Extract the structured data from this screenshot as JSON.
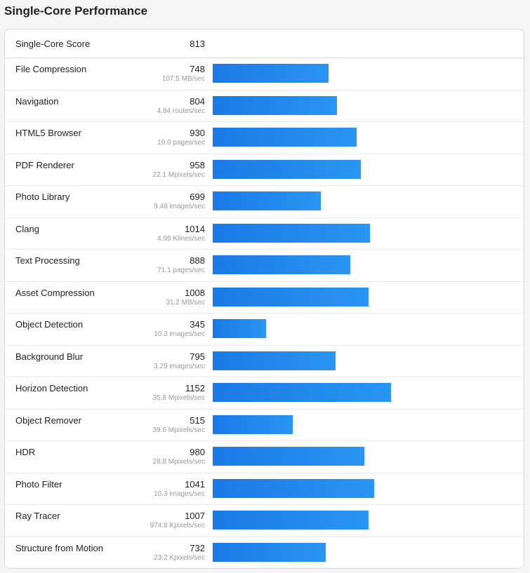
{
  "title": "Single-Core Performance",
  "summary": {
    "label": "Single-Core Score",
    "score": "813"
  },
  "bar_scale_max": 1152,
  "benchmarks": [
    {
      "name": "File Compression",
      "score": "748",
      "rate": "107.5 MB/sec",
      "value": 748
    },
    {
      "name": "Navigation",
      "score": "804",
      "rate": "4.84 routes/sec",
      "value": 804
    },
    {
      "name": "HTML5 Browser",
      "score": "930",
      "rate": "19.0 pages/sec",
      "value": 930
    },
    {
      "name": "PDF Renderer",
      "score": "958",
      "rate": "22.1 Mpixels/sec",
      "value": 958
    },
    {
      "name": "Photo Library",
      "score": "699",
      "rate": "9.48 images/sec",
      "value": 699
    },
    {
      "name": "Clang",
      "score": "1014",
      "rate": "4.99 Klines/sec",
      "value": 1014
    },
    {
      "name": "Text Processing",
      "score": "888",
      "rate": "71.1 pages/sec",
      "value": 888
    },
    {
      "name": "Asset Compression",
      "score": "1008",
      "rate": "31.2 MB/sec",
      "value": 1008
    },
    {
      "name": "Object Detection",
      "score": "345",
      "rate": "10.3 images/sec",
      "value": 345
    },
    {
      "name": "Background Blur",
      "score": "795",
      "rate": "3.29 images/sec",
      "value": 795
    },
    {
      "name": "Horizon Detection",
      "score": "1152",
      "rate": "35.8 Mpixels/sec",
      "value": 1152
    },
    {
      "name": "Object Remover",
      "score": "515",
      "rate": "39.6 Mpixels/sec",
      "value": 515
    },
    {
      "name": "HDR",
      "score": "980",
      "rate": "28.8 Mpixels/sec",
      "value": 980
    },
    {
      "name": "Photo Filter",
      "score": "1041",
      "rate": "10.3 images/sec",
      "value": 1041
    },
    {
      "name": "Ray Tracer",
      "score": "1007",
      "rate": "974.8 Kpixels/sec",
      "value": 1007
    },
    {
      "name": "Structure from Motion",
      "score": "732",
      "rate": "23.2 Kpixels/sec",
      "value": 732
    }
  ]
}
